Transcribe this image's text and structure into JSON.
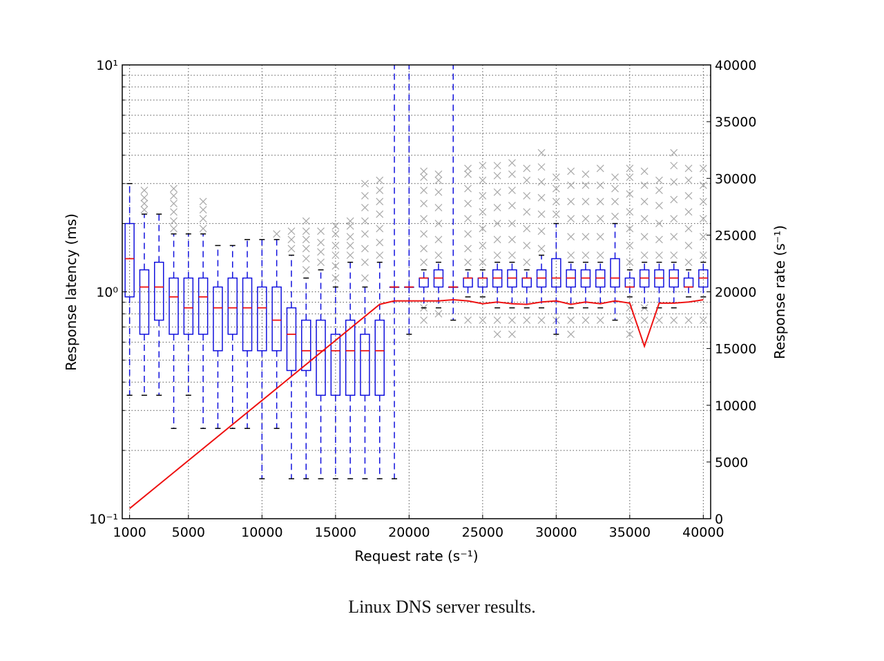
{
  "caption": "Linux DNS server results.",
  "colors": {
    "box": "#1010dd",
    "median": "#ee1111",
    "line": "#ee1111",
    "outlier": "#a9a9a9",
    "grid": "#555555",
    "axis": "#000000"
  },
  "chart_data": {
    "type": "box",
    "xlabel": "Request rate (s⁻¹)",
    "ylabel_left": "Response latency (ms)",
    "ylabel_right": "Response rate (s⁻¹)",
    "x_ticks": [
      "1000",
      "5000",
      "10000",
      "15000",
      "20000",
      "25000",
      "30000",
      "35000",
      "40000"
    ],
    "y_left_ticks": [
      "10⁻¹",
      "10⁰",
      "10¹"
    ],
    "y_right_ticks": [
      "0",
      "5000",
      "10000",
      "15000",
      "20000",
      "25000",
      "30000",
      "35000",
      "40000"
    ],
    "x_range": [
      500,
      40500
    ],
    "y_left_range": [
      0.1,
      10
    ],
    "y_left_scale": "log",
    "y_right_range": [
      0,
      40000
    ],
    "grid": true,
    "boxes": [
      {
        "x": 1000,
        "wlo": 0.35,
        "q1": 0.95,
        "med": 1.4,
        "q3": 2.0,
        "whi": 3.0,
        "out": []
      },
      {
        "x": 2000,
        "wlo": 0.35,
        "q1": 0.65,
        "med": 1.05,
        "q3": 1.25,
        "whi": 2.2,
        "out": [
          2.3,
          2.45,
          2.6,
          2.8
        ]
      },
      {
        "x": 3000,
        "wlo": 0.35,
        "q1": 0.75,
        "med": 1.05,
        "q3": 1.35,
        "whi": 2.2,
        "out": []
      },
      {
        "x": 4000,
        "wlo": 0.25,
        "q1": 0.65,
        "med": 0.95,
        "q3": 1.15,
        "whi": 1.8,
        "out": [
          1.9,
          2.05,
          2.25,
          2.45,
          2.65,
          2.85
        ]
      },
      {
        "x": 5000,
        "wlo": 0.35,
        "q1": 0.65,
        "med": 0.85,
        "q3": 1.15,
        "whi": 1.8,
        "out": []
      },
      {
        "x": 6000,
        "wlo": 0.25,
        "q1": 0.65,
        "med": 0.95,
        "q3": 1.15,
        "whi": 1.8,
        "out": [
          1.9,
          2.1,
          2.3,
          2.5
        ]
      },
      {
        "x": 7000,
        "wlo": 0.25,
        "q1": 0.55,
        "med": 0.85,
        "q3": 1.05,
        "whi": 1.6,
        "out": []
      },
      {
        "x": 8000,
        "wlo": 0.25,
        "q1": 0.65,
        "med": 0.85,
        "q3": 1.15,
        "whi": 1.6,
        "out": []
      },
      {
        "x": 9000,
        "wlo": 0.25,
        "q1": 0.55,
        "med": 0.85,
        "q3": 1.15,
        "whi": 1.7,
        "out": []
      },
      {
        "x": 10000,
        "wlo": 0.15,
        "q1": 0.55,
        "med": 0.85,
        "q3": 1.05,
        "whi": 1.7,
        "out": []
      },
      {
        "x": 11000,
        "wlo": 0.25,
        "q1": 0.55,
        "med": 0.75,
        "q3": 1.05,
        "whi": 1.7,
        "out": [
          1.8
        ]
      },
      {
        "x": 12000,
        "wlo": 0.15,
        "q1": 0.45,
        "med": 0.65,
        "q3": 0.85,
        "whi": 1.45,
        "out": [
          1.55,
          1.7,
          1.85
        ]
      },
      {
        "x": 13000,
        "wlo": 0.15,
        "q1": 0.45,
        "med": 0.55,
        "q3": 0.75,
        "whi": 1.15,
        "out": [
          1.25,
          1.4,
          1.55,
          1.7,
          1.85,
          2.05
        ]
      },
      {
        "x": 14000,
        "wlo": 0.15,
        "q1": 0.35,
        "med": 0.55,
        "q3": 0.75,
        "whi": 1.25,
        "out": [
          1.35,
          1.5,
          1.65,
          1.85
        ]
      },
      {
        "x": 15000,
        "wlo": 0.15,
        "q1": 0.35,
        "med": 0.55,
        "q3": 0.65,
        "whi": 1.05,
        "out": [
          1.15,
          1.3,
          1.45,
          1.6,
          1.8,
          1.95
        ]
      },
      {
        "x": 16000,
        "wlo": 0.15,
        "q1": 0.35,
        "med": 0.55,
        "q3": 0.75,
        "whi": 1.35,
        "out": [
          1.45,
          1.6,
          1.75,
          1.95,
          2.05
        ]
      },
      {
        "x": 17000,
        "wlo": 0.15,
        "q1": 0.35,
        "med": 0.55,
        "q3": 0.65,
        "whi": 1.05,
        "out": [
          1.15,
          1.35,
          1.55,
          1.8,
          2.05,
          2.35,
          2.65,
          3.0
        ]
      },
      {
        "x": 18000,
        "wlo": 0.15,
        "q1": 0.35,
        "med": 0.55,
        "q3": 0.75,
        "whi": 1.35,
        "out": [
          1.45,
          1.65,
          1.9,
          2.2,
          2.5,
          2.8,
          3.1
        ]
      },
      {
        "x": 19000,
        "wlo": 0.15,
        "q1": 1.05,
        "med": 1.05,
        "q3": 1.05,
        "whi": 10,
        "out": []
      },
      {
        "x": 20000,
        "wlo": 0.65,
        "q1": 1.05,
        "med": 1.05,
        "q3": 1.05,
        "whi": 10,
        "out": []
      },
      {
        "x": 21000,
        "wlo": 0.85,
        "q1": 1.05,
        "med": 1.15,
        "q3": 1.15,
        "whi": 1.25,
        "out": [
          0.75,
          0.85,
          1.35,
          1.55,
          1.8,
          2.1,
          2.45,
          2.8,
          3.2,
          3.4
        ]
      },
      {
        "x": 22000,
        "wlo": 0.85,
        "q1": 1.05,
        "med": 1.15,
        "q3": 1.25,
        "whi": 1.35,
        "out": [
          0.8,
          1.45,
          1.7,
          2.0,
          2.35,
          2.75,
          3.1,
          3.3
        ]
      },
      {
        "x": 23000,
        "wlo": 0.75,
        "q1": 1.05,
        "med": 1.05,
        "q3": 1.05,
        "whi": 10,
        "out": []
      },
      {
        "x": 24000,
        "wlo": 0.95,
        "q1": 1.05,
        "med": 1.15,
        "q3": 1.15,
        "whi": 1.25,
        "out": [
          0.75,
          1.35,
          1.55,
          1.8,
          2.1,
          2.45,
          2.85,
          3.3,
          3.5
        ]
      },
      {
        "x": 25000,
        "wlo": 0.95,
        "q1": 1.05,
        "med": 1.15,
        "q3": 1.15,
        "whi": 1.25,
        "out": [
          0.75,
          1.35,
          1.6,
          1.9,
          2.25,
          2.65,
          3.1,
          3.6
        ]
      },
      {
        "x": 26000,
        "wlo": 0.85,
        "q1": 1.05,
        "med": 1.15,
        "q3": 1.25,
        "whi": 1.35,
        "out": [
          0.65,
          0.75,
          1.45,
          1.7,
          2.0,
          2.35,
          2.75,
          3.25,
          3.6
        ]
      },
      {
        "x": 27000,
        "wlo": 0.85,
        "q1": 1.05,
        "med": 1.15,
        "q3": 1.25,
        "whi": 1.35,
        "out": [
          0.65,
          0.75,
          1.45,
          1.7,
          2.0,
          2.4,
          2.8,
          3.3,
          3.7
        ]
      },
      {
        "x": 28000,
        "wlo": 0.85,
        "q1": 1.05,
        "med": 1.15,
        "q3": 1.15,
        "whi": 1.25,
        "out": [
          0.75,
          1.35,
          1.6,
          1.9,
          2.25,
          2.65,
          3.1,
          3.5
        ]
      },
      {
        "x": 29000,
        "wlo": 0.85,
        "q1": 1.05,
        "med": 1.15,
        "q3": 1.25,
        "whi": 1.45,
        "out": [
          0.75,
          1.55,
          1.85,
          2.2,
          2.6,
          3.05,
          3.55,
          4.1
        ]
      },
      {
        "x": 30000,
        "wlo": 0.65,
        "q1": 1.05,
        "med": 1.15,
        "q3": 1.4,
        "whi": 2.0,
        "out": [
          0.75,
          2.2,
          2.5,
          2.85,
          3.2
        ]
      },
      {
        "x": 31000,
        "wlo": 0.85,
        "q1": 1.05,
        "med": 1.15,
        "q3": 1.25,
        "whi": 1.35,
        "out": [
          0.65,
          0.75,
          1.45,
          1.75,
          2.1,
          2.5,
          2.95,
          3.4
        ]
      },
      {
        "x": 32000,
        "wlo": 0.85,
        "q1": 1.05,
        "med": 1.15,
        "q3": 1.25,
        "whi": 1.35,
        "out": [
          0.75,
          1.45,
          1.75,
          2.1,
          2.5,
          2.95,
          3.3
        ]
      },
      {
        "x": 33000,
        "wlo": 0.85,
        "q1": 1.05,
        "med": 1.15,
        "q3": 1.25,
        "whi": 1.35,
        "out": [
          0.75,
          1.45,
          1.75,
          2.1,
          2.5,
          2.95,
          3.5
        ]
      },
      {
        "x": 34000,
        "wlo": 0.75,
        "q1": 1.05,
        "med": 1.15,
        "q3": 1.4,
        "whi": 2.0,
        "out": [
          2.15,
          2.5,
          2.85,
          3.2
        ]
      },
      {
        "x": 35000,
        "wlo": 0.95,
        "q1": 1.05,
        "med": 1.05,
        "q3": 1.15,
        "whi": 1.25,
        "out": [
          0.65,
          0.75,
          0.85,
          1.35,
          1.6,
          1.9,
          2.25,
          2.7,
          3.2,
          3.5
        ]
      },
      {
        "x": 36000,
        "wlo": 0.85,
        "q1": 1.05,
        "med": 1.15,
        "q3": 1.25,
        "whi": 1.35,
        "out": [
          0.75,
          0.85,
          1.45,
          1.75,
          2.1,
          2.5,
          2.95,
          3.4
        ]
      },
      {
        "x": 37000,
        "wlo": 0.85,
        "q1": 1.05,
        "med": 1.15,
        "q3": 1.25,
        "whi": 1.35,
        "out": [
          0.75,
          1.45,
          1.7,
          2.0,
          2.4,
          2.8,
          3.1
        ]
      },
      {
        "x": 38000,
        "wlo": 0.85,
        "q1": 1.05,
        "med": 1.15,
        "q3": 1.25,
        "whi": 1.35,
        "out": [
          0.75,
          1.45,
          1.75,
          2.1,
          2.55,
          3.05,
          3.6,
          4.1
        ]
      },
      {
        "x": 39000,
        "wlo": 0.95,
        "q1": 1.05,
        "med": 1.05,
        "q3": 1.15,
        "whi": 1.25,
        "out": [
          0.75,
          1.35,
          1.6,
          1.9,
          2.25,
          2.65,
          3.1,
          3.5
        ]
      },
      {
        "x": 40000,
        "wlo": 0.95,
        "q1": 1.05,
        "med": 1.15,
        "q3": 1.25,
        "whi": 1.35,
        "out": [
          0.75,
          1.45,
          1.75,
          2.1,
          2.5,
          2.95,
          3.5
        ]
      }
    ],
    "line": {
      "x": [
        1000,
        18000,
        19000,
        20000,
        21000,
        22000,
        23000,
        24000,
        25000,
        26000,
        27000,
        28000,
        29000,
        30000,
        31000,
        32000,
        33000,
        34000,
        35000,
        36000,
        37000,
        38000,
        39000,
        40000
      ],
      "y": [
        900,
        18900,
        19200,
        19200,
        19200,
        19200,
        19300,
        19200,
        18950,
        19100,
        18950,
        18900,
        19100,
        19200,
        18900,
        19100,
        18950,
        19200,
        19000,
        15200,
        19000,
        19000,
        19100,
        19300
      ]
    }
  }
}
